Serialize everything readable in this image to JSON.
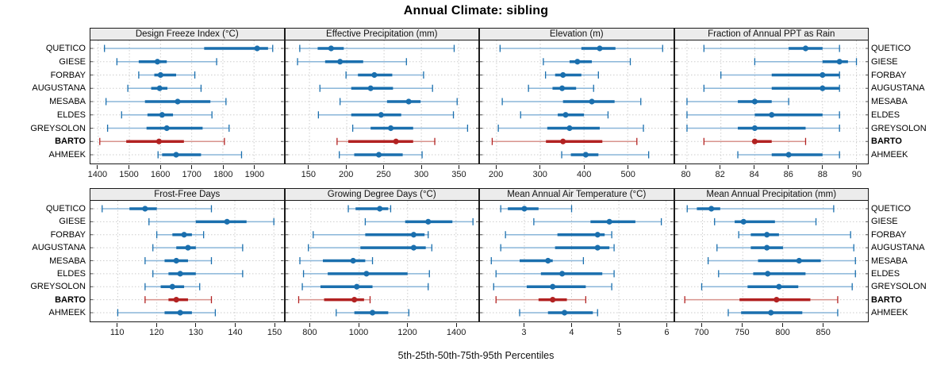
{
  "title": "Annual Climate: sibling",
  "footer": "5th-25th-50th-75th-95th Percentiles",
  "sites": [
    "QUETICO",
    "GIESE",
    "FORBAY",
    "AUGUSTANA",
    "MESABA",
    "ELDES",
    "GREYSOLON",
    "BARTO",
    "AHMEEK"
  ],
  "highlight_site": "BARTO",
  "colors": {
    "blue_dark": "#1a6fae",
    "blue_light": "#8ab6d9",
    "red_dark": "#b22222",
    "red_light": "#d8938d",
    "grid": "#cdcdcd",
    "strip_bg": "#ececec",
    "border": "#1a1a1a"
  },
  "chart_data": {
    "type": "interval-dotplot",
    "orientation": "horizontal",
    "percentile_labels": [
      "5th",
      "25th",
      "50th",
      "75th",
      "95th"
    ],
    "grid": "dotted",
    "layout": "2 rows x 4 columns of panels, site labels on both sides",
    "panels": [
      {
        "label": "Design Freeze Index (°C)",
        "grid_row": 0,
        "grid_col": 0,
        "xlim": [
          1375,
          1995
        ],
        "ticks": [
          1400,
          1500,
          1600,
          1700,
          1800,
          1900
        ],
        "values": {
          "QUETICO": [
            1420,
            1740,
            1910,
            1945,
            1960
          ],
          "GIESE": [
            1460,
            1530,
            1590,
            1620,
            1780
          ],
          "FORBAY": [
            1530,
            1580,
            1600,
            1650,
            1710
          ],
          "AUGUSTANA": [
            1495,
            1570,
            1597,
            1622,
            1730
          ],
          "MESABA": [
            1425,
            1550,
            1655,
            1760,
            1810
          ],
          "ELDES": [
            1475,
            1558,
            1605,
            1640,
            1765
          ],
          "GREYSOLON": [
            1430,
            1555,
            1620,
            1735,
            1820
          ],
          "BARTO": [
            1405,
            1490,
            1595,
            1675,
            1805
          ],
          "AHMEEK": [
            1592,
            1605,
            1650,
            1730,
            1860
          ]
        }
      },
      {
        "label": "Effective Precipitation (mm)",
        "grid_row": 0,
        "grid_col": 1,
        "xlim": [
          118,
          377
        ],
        "ticks": [
          150,
          200,
          250,
          300,
          350
        ],
        "values": {
          "QUETICO": [
            137,
            161,
            179,
            196,
            344
          ],
          "GIESE": [
            134,
            171,
            191,
            222,
            280
          ],
          "FORBAY": [
            199,
            215,
            237,
            261,
            303
          ],
          "AUGUSTANA": [
            164,
            206,
            232,
            262,
            315
          ],
          "MESABA": [
            191,
            254,
            283,
            299,
            348
          ],
          "ELDES": [
            162,
            206,
            246,
            273,
            343
          ],
          "GREYSOLON": [
            208,
            232,
            259,
            289,
            362
          ],
          "BARTO": [
            187,
            202,
            266,
            289,
            318
          ],
          "AHMEEK": [
            190,
            210,
            243,
            275,
            301
          ]
        }
      },
      {
        "label": "Elevation (m)",
        "grid_row": 0,
        "grid_col": 2,
        "xlim": [
          162,
          604
        ],
        "ticks": [
          200,
          300,
          400,
          500
        ],
        "values": {
          "QUETICO": [
            208,
            394,
            436,
            472,
            580
          ],
          "GIESE": [
            307,
            367,
            385,
            418,
            506
          ],
          "FORBAY": [
            312,
            334,
            352,
            394,
            433
          ],
          "AUGUSTANA": [
            273,
            328,
            350,
            382,
            422
          ],
          "MESABA": [
            213,
            352,
            418,
            470,
            530
          ],
          "ELDES": [
            255,
            340,
            358,
            400,
            455
          ],
          "GREYSOLON": [
            204,
            316,
            367,
            436,
            536
          ],
          "BARTO": [
            190,
            313,
            352,
            442,
            521
          ],
          "AHMEEK": [
            349,
            370,
            404,
            433,
            548
          ]
        }
      },
      {
        "label": "Fraction of Annual PPT as Rain",
        "grid_row": 0,
        "grid_col": 3,
        "xlim": [
          79.3,
          90.7
        ],
        "ticks": [
          80,
          82,
          84,
          86,
          88,
          90
        ],
        "values": {
          "QUETICO": [
            81,
            86,
            87,
            88,
            89
          ],
          "GIESE": [
            84,
            88,
            89,
            89.5,
            90
          ],
          "FORBAY": [
            82,
            85,
            88,
            89,
            89
          ],
          "AUGUSTANA": [
            81,
            85,
            88,
            89,
            89
          ],
          "MESABA": [
            80,
            83,
            84,
            85,
            86
          ],
          "ELDES": [
            80,
            84,
            85,
            88,
            89
          ],
          "GREYSOLON": [
            80,
            83,
            84,
            87,
            89
          ],
          "BARTO": [
            81,
            84,
            84,
            85,
            87
          ],
          "AHMEEK": [
            83,
            85,
            86,
            88,
            89
          ]
        }
      },
      {
        "label": "Frost-Free Days",
        "grid_row": 1,
        "grid_col": 0,
        "xlim": [
          103,
          152.5
        ],
        "ticks": [
          110,
          120,
          130,
          140,
          150
        ],
        "values": {
          "QUETICO": [
            106,
            113,
            117,
            120,
            134
          ],
          "GIESE": [
            118,
            130,
            138,
            143,
            150
          ],
          "FORBAY": [
            120,
            124,
            127,
            129,
            132
          ],
          "AUGUSTANA": [
            119,
            125,
            128,
            130,
            142
          ],
          "MESABA": [
            117,
            122,
            125,
            128,
            134
          ],
          "ELDES": [
            119,
            123,
            126,
            130,
            142
          ],
          "GREYSOLON": [
            117,
            121,
            124,
            127,
            131
          ],
          "BARTO": [
            117,
            123,
            125,
            128,
            134
          ],
          "AHMEEK": [
            110,
            122,
            126,
            129,
            135
          ]
        }
      },
      {
        "label": "Growing Degree Days (°C)",
        "grid_row": 1,
        "grid_col": 1,
        "xlim": [
          696,
          1494
        ],
        "ticks": [
          800,
          1000,
          1200,
          1400
        ],
        "values": {
          "QUETICO": [
            955,
            985,
            1085,
            1120,
            1130
          ],
          "GIESE": [
            1025,
            1190,
            1285,
            1385,
            1470
          ],
          "FORBAY": [
            810,
            1025,
            1225,
            1270,
            1285
          ],
          "AUGUSTANA": [
            790,
            1005,
            1225,
            1275,
            1300
          ],
          "MESABA": [
            755,
            850,
            975,
            1025,
            1055
          ],
          "ELDES": [
            770,
            870,
            1030,
            1200,
            1290
          ],
          "GREYSOLON": [
            765,
            840,
            990,
            1055,
            1285
          ],
          "BARTO": [
            750,
            855,
            980,
            1020,
            1045
          ],
          "AHMEEK": [
            905,
            980,
            1055,
            1120,
            1205
          ]
        }
      },
      {
        "label": "Mean Annual Air Temperature (°C)",
        "grid_row": 1,
        "grid_col": 2,
        "xlim": [
          2.06,
          6.15
        ],
        "ticks": [
          3,
          4,
          5,
          6
        ],
        "values": {
          "QUETICO": [
            2.5,
            2.65,
            3.0,
            3.3,
            4.0
          ],
          "GIESE": [
            3.2,
            4.4,
            4.8,
            5.35,
            5.9
          ],
          "FORBAY": [
            2.6,
            3.7,
            4.55,
            4.7,
            4.85
          ],
          "AUGUSTANA": [
            2.5,
            3.65,
            4.55,
            4.8,
            4.9
          ],
          "MESABA": [
            2.3,
            2.9,
            3.5,
            3.6,
            4.25
          ],
          "ELDES": [
            2.4,
            3.35,
            3.8,
            4.65,
            4.9
          ],
          "GREYSOLON": [
            2.35,
            3.05,
            3.6,
            4.3,
            4.85
          ],
          "BARTO": [
            2.4,
            3.3,
            3.6,
            3.9,
            4.3
          ],
          "AHMEEK": [
            2.9,
            3.5,
            3.85,
            4.45,
            4.55
          ]
        }
      },
      {
        "label": "Mean Annual Precipitation (mm)",
        "grid_row": 1,
        "grid_col": 3,
        "xlim": [
          666,
          906
        ],
        "ticks": [
          700,
          750,
          800,
          850
        ],
        "values": {
          "QUETICO": [
            681,
            693,
            711,
            722,
            863
          ],
          "GIESE": [
            715,
            740,
            751,
            790,
            841
          ],
          "FORBAY": [
            745,
            760,
            780,
            795,
            884
          ],
          "AUGUSTANA": [
            718,
            760,
            780,
            800,
            888
          ],
          "MESABA": [
            707,
            769,
            820,
            847,
            890
          ],
          "ELDES": [
            720,
            763,
            781,
            828,
            890
          ],
          "GREYSOLON": [
            699,
            756,
            795,
            819,
            886
          ],
          "BARTO": [
            678,
            746,
            792,
            834,
            868
          ],
          "AHMEEK": [
            732,
            748,
            785,
            824,
            868
          ]
        }
      }
    ]
  }
}
